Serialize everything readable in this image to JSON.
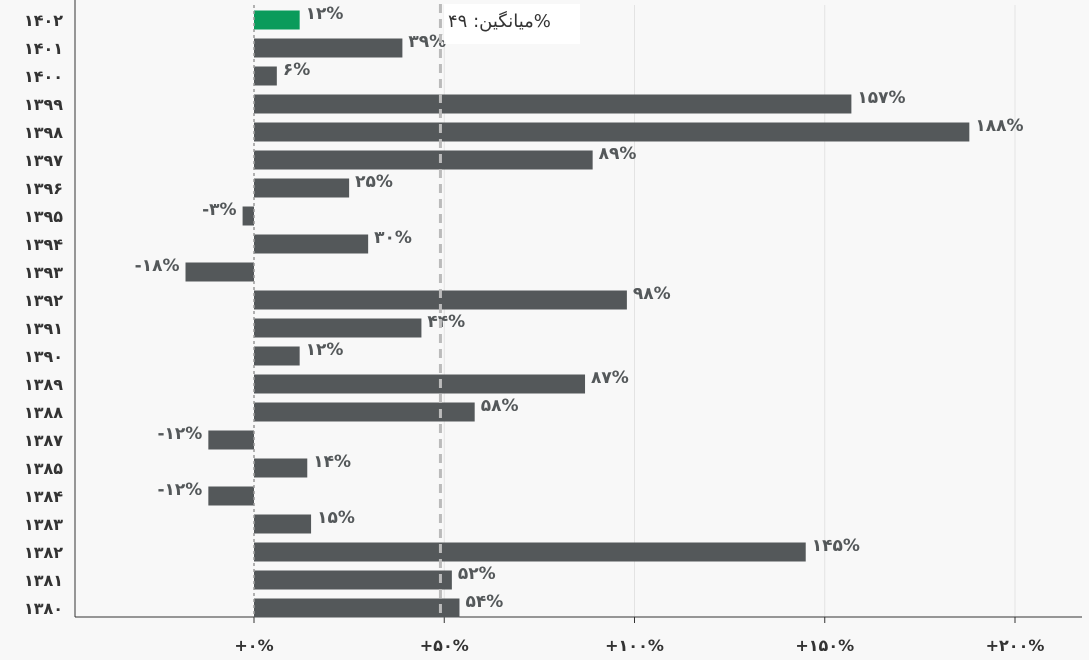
{
  "chart_data": {
    "type": "bar",
    "orientation": "horizontal",
    "categories": [
      "۱۴۰۲",
      "۱۴۰۱",
      "۱۴۰۰",
      "۱۳۹۹",
      "۱۳۹۸",
      "۱۳۹۷",
      "۱۳۹۶",
      "۱۳۹۵",
      "۱۳۹۴",
      "۱۳۹۳",
      "۱۳۹۲",
      "۱۳۹۱",
      "۱۳۹۰",
      "۱۳۸۹",
      "۱۳۸۸",
      "۱۳۸۷",
      "۱۳۸۵",
      "۱۳۸۴",
      "۱۳۸۳",
      "۱۳۸۲",
      "۱۳۸۱",
      "۱۳۸۰"
    ],
    "values": [
      12,
      39,
      6,
      157,
      188,
      89,
      25,
      -3,
      30,
      -18,
      98,
      44,
      12,
      87,
      58,
      -12,
      14,
      -12,
      15,
      145,
      52,
      54
    ],
    "value_labels": [
      "۱۲%",
      "۳۹%",
      "۶%",
      "۱۵۷%",
      "۱۸۸%",
      "۸۹%",
      "۲۵%",
      "-۳%",
      "۳۰%",
      "-۱۸%",
      "۹۸%",
      "۴۴%",
      "۱۲%",
      "۸۷%",
      "۵۸%",
      "-۱۲%",
      "۱۴%",
      "-۱۲%",
      "۱۵%",
      "۱۴۵%",
      "۵۲%",
      "۵۴%"
    ],
    "highlight_index": 0,
    "xlim": [
      -47,
      215
    ],
    "xticks": [
      0,
      50,
      100,
      150,
      200
    ],
    "xtick_labels": [
      "+۰%",
      "+۵۰%",
      "+۱۰۰%",
      "+۱۵۰%",
      "+۲۰۰%"
    ],
    "average": 49,
    "average_label": "میانگین: ۴۹%",
    "grid": true,
    "title": "",
    "xlabel": "",
    "ylabel": "",
    "colors": {
      "bar": "#54585a",
      "highlight": "#0a9b5b",
      "grid": "#e3e3e3",
      "axis": "#333333",
      "zero_line": "#999999",
      "average_line": "#bbbbbb",
      "background": "#f8f8f8"
    }
  }
}
